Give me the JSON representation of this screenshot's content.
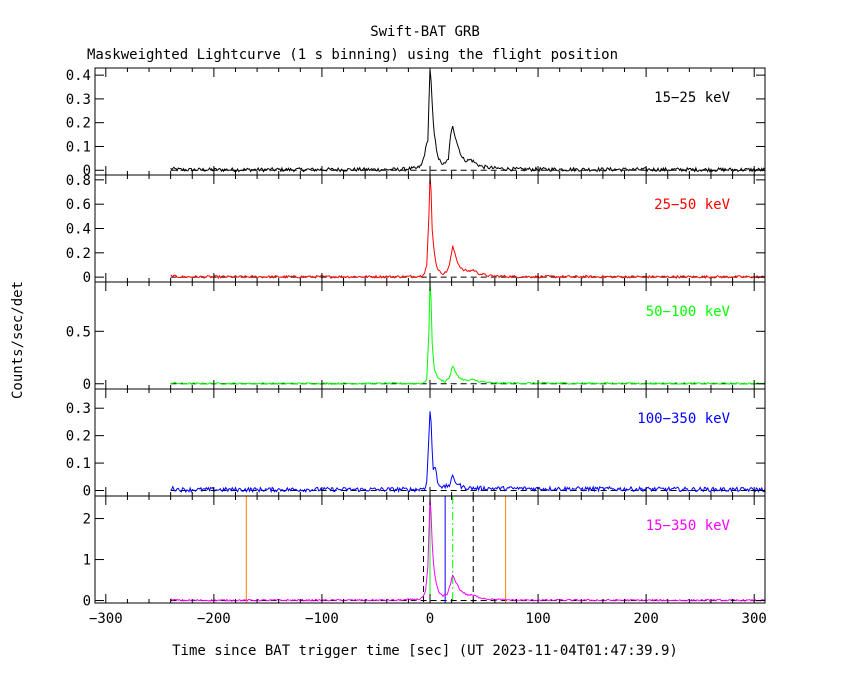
{
  "title": "Swift-BAT GRB",
  "subtitle": "Maskweighted Lightcurve (1 s binning) using the flight position",
  "chart_data": {
    "type": "line",
    "title": "Swift-BAT GRB",
    "subtitle": "Maskweighted Lightcurve (1 s binning) using the flight position",
    "xlabel": "Time since BAT trigger time [sec] (UT 2023-11-04T01:47:39.9)",
    "ylabel": "Counts/sec/det",
    "xlim": [
      -310,
      310
    ],
    "xticks": [
      -300,
      -200,
      -100,
      0,
      100,
      200,
      300
    ],
    "data_range": [
      -240,
      310
    ],
    "panels": [
      {
        "name": "15-25 keV",
        "label": "15−25 keV",
        "color": "#000000",
        "ylim": [
          -0.02,
          0.43
        ],
        "yticks": [
          0,
          0.1,
          0.2,
          0.3,
          0.4
        ],
        "yticklabels": [
          "0",
          "0.1",
          "0.2",
          "0.3",
          "0.4"
        ],
        "baseline_noise": 0.008,
        "profile": [
          [
            -240,
            0.006
          ],
          [
            -230,
            0.002
          ],
          [
            -30,
            0.003
          ],
          [
            -12,
            0.008
          ],
          [
            -8,
            0.02
          ],
          [
            -6,
            0.05
          ],
          [
            -4,
            0.09
          ],
          [
            -2,
            0.13
          ],
          [
            0,
            0.43
          ],
          [
            1,
            0.37
          ],
          [
            2,
            0.28
          ],
          [
            3,
            0.2
          ],
          [
            4,
            0.15
          ],
          [
            6,
            0.09
          ],
          [
            8,
            0.05
          ],
          [
            10,
            0.03
          ],
          [
            14,
            0.025
          ],
          [
            17,
            0.05
          ],
          [
            19,
            0.14
          ],
          [
            21,
            0.19
          ],
          [
            23,
            0.15
          ],
          [
            26,
            0.1
          ],
          [
            30,
            0.05
          ],
          [
            34,
            0.04
          ],
          [
            38,
            0.045
          ],
          [
            42,
            0.03
          ],
          [
            48,
            0.015
          ],
          [
            60,
            0.008
          ],
          [
            80,
            0.004
          ],
          [
            310,
            0.002
          ]
        ]
      },
      {
        "name": "25-50 keV",
        "label": "25−50 keV",
        "color": "#ff0000",
        "ylim": [
          -0.04,
          0.84
        ],
        "yticks": [
          0,
          0.2,
          0.4,
          0.6,
          0.8
        ],
        "yticklabels": [
          "0",
          "0.2",
          "0.4",
          "0.6",
          "0.8"
        ],
        "baseline_noise": 0.01,
        "profile": [
          [
            -240,
            0.01
          ],
          [
            -230,
            0.002
          ],
          [
            -20,
            0.004
          ],
          [
            -8,
            0.01
          ],
          [
            -5,
            0.04
          ],
          [
            -3,
            0.1
          ],
          [
            -1,
            0.5
          ],
          [
            0,
            0.84
          ],
          [
            1,
            0.7
          ],
          [
            2,
            0.4
          ],
          [
            3,
            0.3
          ],
          [
            4,
            0.2
          ],
          [
            6,
            0.1
          ],
          [
            8,
            0.05
          ],
          [
            12,
            0.03
          ],
          [
            15,
            0.04
          ],
          [
            18,
            0.1
          ],
          [
            21,
            0.25
          ],
          [
            23,
            0.2
          ],
          [
            26,
            0.11
          ],
          [
            30,
            0.06
          ],
          [
            36,
            0.05
          ],
          [
            40,
            0.06
          ],
          [
            45,
            0.03
          ],
          [
            55,
            0.01
          ],
          [
            80,
            0.004
          ],
          [
            310,
            0.002
          ]
        ]
      },
      {
        "name": "50-100 keV",
        "label": "50−100 keV",
        "color": "#00ff00",
        "ylim": [
          -0.05,
          0.97
        ],
        "yticks": [
          0,
          0.5
        ],
        "yticklabels": [
          "0",
          "0.5"
        ],
        "baseline_noise": 0.008,
        "profile": [
          [
            -240,
            0.008
          ],
          [
            -230,
            0.002
          ],
          [
            -10,
            0.003
          ],
          [
            -5,
            0.01
          ],
          [
            -3,
            0.05
          ],
          [
            -1,
            0.5
          ],
          [
            0,
            0.96
          ],
          [
            1,
            0.8
          ],
          [
            2,
            0.4
          ],
          [
            3,
            0.25
          ],
          [
            4,
            0.15
          ],
          [
            6,
            0.08
          ],
          [
            9,
            0.04
          ],
          [
            14,
            0.02
          ],
          [
            18,
            0.06
          ],
          [
            21,
            0.17
          ],
          [
            24,
            0.1
          ],
          [
            28,
            0.05
          ],
          [
            34,
            0.03
          ],
          [
            40,
            0.04
          ],
          [
            46,
            0.02
          ],
          [
            60,
            0.006
          ],
          [
            310,
            0.002
          ]
        ]
      },
      {
        "name": "100-350 keV",
        "label": "100−350 keV",
        "color": "#0000ff",
        "ylim": [
          -0.02,
          0.37
        ],
        "yticks": [
          0,
          0.1,
          0.2,
          0.3
        ],
        "yticklabels": [
          "0",
          "0.1",
          "0.2",
          "0.3"
        ],
        "baseline_noise": 0.008,
        "profile": [
          [
            -240,
            0.008
          ],
          [
            -230,
            0.003
          ],
          [
            -10,
            0.004
          ],
          [
            -5,
            0.01
          ],
          [
            -3,
            0.03
          ],
          [
            -1,
            0.2
          ],
          [
            0,
            0.29
          ],
          [
            1,
            0.25
          ],
          [
            2,
            0.15
          ],
          [
            3,
            0.07
          ],
          [
            5,
            0.09
          ],
          [
            7,
            0.03
          ],
          [
            12,
            0.01
          ],
          [
            18,
            0.02
          ],
          [
            21,
            0.05
          ],
          [
            24,
            0.03
          ],
          [
            30,
            0.012
          ],
          [
            40,
            0.008
          ],
          [
            310,
            0.003
          ]
        ]
      },
      {
        "name": "15-350 keV",
        "label": "15−350 keV",
        "color": "#ff00ff",
        "ylim": [
          -0.06,
          2.55
        ],
        "yticks": [
          0,
          1,
          2
        ],
        "yticklabels": [
          "0",
          "1",
          "2"
        ],
        "baseline_noise": 0.02,
        "profile": [
          [
            -240,
            0.02
          ],
          [
            -230,
            0.005
          ],
          [
            -30,
            0.01
          ],
          [
            -10,
            0.03
          ],
          [
            -6,
            0.1
          ],
          [
            -4,
            0.25
          ],
          [
            -2,
            0.8
          ],
          [
            0,
            2.5
          ],
          [
            1,
            2.1
          ],
          [
            2,
            1.4
          ],
          [
            3,
            1.0
          ],
          [
            4,
            0.7
          ],
          [
            6,
            0.4
          ],
          [
            8,
            0.2
          ],
          [
            12,
            0.12
          ],
          [
            16,
            0.15
          ],
          [
            19,
            0.4
          ],
          [
            21,
            0.62
          ],
          [
            24,
            0.45
          ],
          [
            28,
            0.25
          ],
          [
            34,
            0.14
          ],
          [
            40,
            0.13
          ],
          [
            45,
            0.08
          ],
          [
            55,
            0.03
          ],
          [
            80,
            0.01
          ],
          [
            310,
            0.005
          ]
        ],
        "vlines": [
          {
            "x": -170,
            "style": "solid",
            "color": "#ff8000"
          },
          {
            "x": -6,
            "style": "dashed",
            "color": "#000000"
          },
          {
            "x": 0,
            "style": "solid",
            "color": "#00ff00"
          },
          {
            "x": 14,
            "style": "solid",
            "color": "#0000ff"
          },
          {
            "x": 21,
            "style": "dashdot",
            "color": "#00ff00"
          },
          {
            "x": 40,
            "style": "dashed",
            "color": "#000000"
          },
          {
            "x": 70,
            "style": "solid",
            "color": "#ff8000"
          }
        ]
      }
    ]
  }
}
